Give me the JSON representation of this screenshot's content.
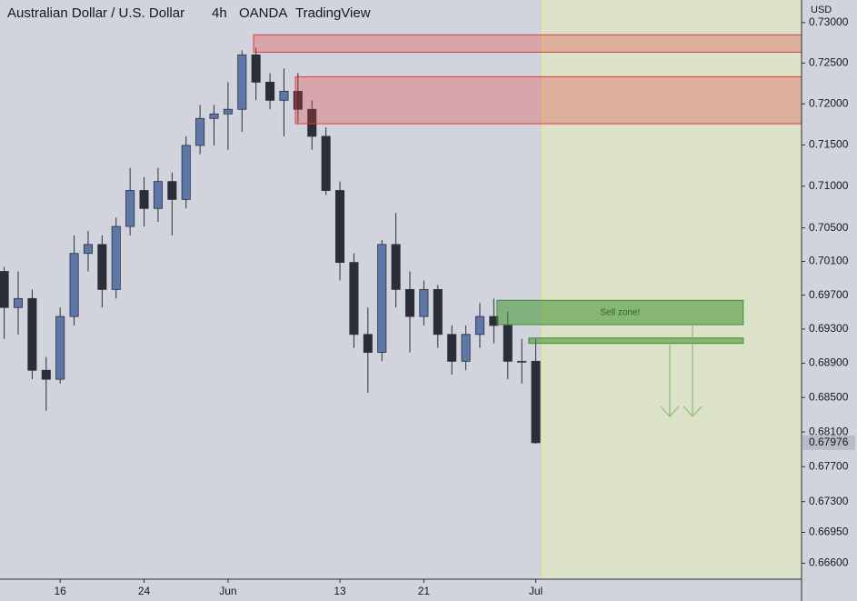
{
  "chart_data": {
    "type": "candlestick",
    "title": "Australian Dollar / U.S. Dollar",
    "interval": "4h",
    "source": "OANDA",
    "platform": "TradingView",
    "currency": "USD",
    "log_scale": true,
    "up_color": "#5d78a8",
    "down_color": "#2a2e39",
    "x": [
      -4,
      -3,
      -2,
      -1,
      0,
      1,
      2,
      3,
      4,
      5,
      6,
      7,
      8,
      9,
      10,
      11,
      12,
      13,
      14,
      15,
      16,
      17,
      18,
      19,
      20,
      21,
      22,
      23,
      24,
      25,
      26,
      27,
      28,
      29,
      30,
      31,
      32,
      33,
      34
    ],
    "open": [
      0.69981,
      0.69554,
      0.6966,
      0.68817,
      0.68712,
      0.69448,
      0.70195,
      0.70302,
      0.69767,
      0.70517,
      0.70949,
      0.70733,
      0.71057,
      0.70841,
      0.71494,
      0.71822,
      0.71877,
      0.71933,
      0.72601,
      0.72265,
      0.72043,
      0.72154,
      0.71933,
      0.71604,
      0.70949,
      0.70088,
      0.69237,
      0.69026,
      0.70302,
      0.69767,
      0.69448,
      0.69767,
      0.69237,
      0.68922,
      0.69237,
      0.69448,
      0.69342,
      0.68922,
      0.68922
    ],
    "high": [
      0.70034,
      0.69981,
      0.69767,
      0.68974,
      0.69554,
      0.7041,
      0.70463,
      0.7041,
      0.70625,
      0.71221,
      0.71112,
      0.71221,
      0.71166,
      0.71604,
      0.71987,
      0.71987,
      0.72265,
      0.72657,
      0.7269,
      0.72377,
      0.72433,
      0.72377,
      0.72043,
      0.71713,
      0.71057,
      0.70195,
      0.69554,
      0.70356,
      0.70679,
      0.69981,
      0.69874,
      0.6982,
      0.69342,
      0.69342,
      0.69607,
      0.6966,
      0.69501,
      0.69184,
      0.69184
    ],
    "low": [
      0.69184,
      0.69237,
      0.68712,
      0.68347,
      0.6866,
      0.69342,
      0.69981,
      0.69554,
      0.6966,
      0.7041,
      0.70517,
      0.70571,
      0.7041,
      0.70733,
      0.71387,
      0.71494,
      0.71441,
      0.71659,
      0.72043,
      0.71933,
      0.71604,
      0.71768,
      0.71441,
      0.70895,
      0.69874,
      0.69079,
      0.68556,
      0.68922,
      0.69554,
      0.69026,
      0.69342,
      0.69079,
      0.68765,
      0.68817,
      0.69079,
      0.69132,
      0.68712,
      0.6866,
      0.67964
    ],
    "close": [
      0.69554,
      0.6966,
      0.68817,
      0.68712,
      0.69448,
      0.70195,
      0.70302,
      0.69767,
      0.70517,
      0.70949,
      0.70733,
      0.71057,
      0.70841,
      0.71494,
      0.71822,
      0.71877,
      0.71933,
      0.72601,
      0.72265,
      0.72043,
      0.72154,
      0.71933,
      0.71604,
      0.70949,
      0.70088,
      0.69237,
      0.69026,
      0.70302,
      0.69767,
      0.69448,
      0.69767,
      0.69237,
      0.68922,
      0.69237,
      0.69448,
      0.69342,
      0.68922,
      0.68922,
      0.67976
    ],
    "last_price": {
      "value": 0.67976,
      "label": "0.67976"
    },
    "xlim": [
      -4.3,
      53.0
    ],
    "ylim": [
      0.6642,
      0.7328
    ],
    "xticks": [
      {
        "value": 0,
        "label": "16"
      },
      {
        "value": 6,
        "label": "24"
      },
      {
        "value": 12,
        "label": "Jun"
      },
      {
        "value": 20,
        "label": "13"
      },
      {
        "value": 26,
        "label": "21"
      },
      {
        "value": 34,
        "label": "Jul"
      }
    ],
    "yticks": [
      {
        "value": 0.73,
        "label": "0.73000"
      },
      {
        "value": 0.725,
        "label": "0.72500"
      },
      {
        "value": 0.72,
        "label": "0.72000"
      },
      {
        "value": 0.715,
        "label": "0.71500"
      },
      {
        "value": 0.71,
        "label": "0.71000"
      },
      {
        "value": 0.705,
        "label": "0.70500"
      },
      {
        "value": 0.701,
        "label": "0.70100"
      },
      {
        "value": 0.697,
        "label": "0.69700"
      },
      {
        "value": 0.693,
        "label": "0.69300"
      },
      {
        "value": 0.689,
        "label": "0.68900"
      },
      {
        "value": 0.685,
        "label": "0.68500"
      },
      {
        "value": 0.681,
        "label": "0.68100"
      },
      {
        "value": 0.677,
        "label": "0.67700"
      },
      {
        "value": 0.673,
        "label": "0.67300"
      },
      {
        "value": 0.6695,
        "label": "0.66950"
      },
      {
        "value": 0.666,
        "label": "0.66600"
      }
    ],
    "zones": [
      {
        "x": [
          13.83,
          53.0
        ],
        "y": [
          0.72634,
          0.72848
        ],
        "color": "#e03a3a"
      },
      {
        "x": [
          16.82,
          53.0
        ],
        "y": [
          0.71757,
          0.72332
        ],
        "color": "#e03a3a"
      },
      {
        "x": [
          31.23,
          48.83
        ],
        "y": [
          0.69352,
          0.69639
        ],
        "color": "#3f8f2f",
        "label": "Sell zone!"
      },
      {
        "x": [
          33.5,
          48.83
        ],
        "y": [
          0.69132,
          0.69195
        ],
        "color": "#3f8f2f"
      }
    ]
  }
}
